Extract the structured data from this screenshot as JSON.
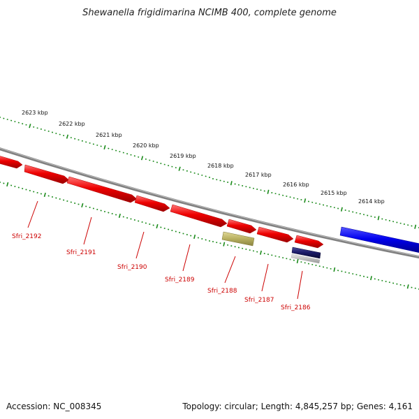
{
  "title": "Shewanella frigidimarina NCIMB 400, complete genome",
  "scale_labels": [
    "2623 kbp",
    "2622 kbp",
    "2621 kbp",
    "2620 kbp",
    "2619 kbp",
    "2618 kbp",
    "2617 kbp",
    "2616 kbp",
    "2615 kbp",
    "2614 kbp"
  ],
  "genes": [
    "Sfri_2192",
    "Sfri_2191",
    "Sfri_2190",
    "Sfri_2189",
    "Sfri_2188",
    "Sfri_2187",
    "Sfri_2186"
  ],
  "footer": {
    "accession": "Accession: NC_008345",
    "topology": "Topology: circular; Length: 4,845,257 bp; Genes: 4,161"
  },
  "colors": {
    "forward_gene": "#ee0000",
    "reverse_gene": "#0000ee",
    "rna_gene": "#b8b060",
    "other_gene": "#1a1a66",
    "backbone": "#808080",
    "ticks": "#1a8a1a",
    "label_text": "#cc0000"
  }
}
